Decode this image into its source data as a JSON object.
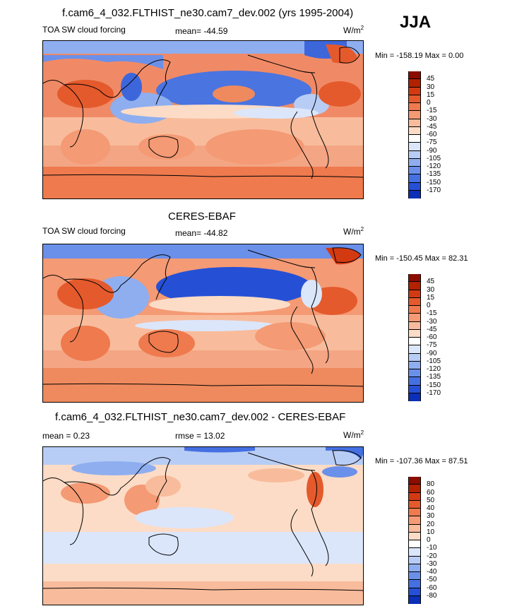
{
  "season": "JJA",
  "units_base": "W/m",
  "units_exp": "2",
  "panels": [
    {
      "title": "f.cam6_4_032.FLTHIST_ne30.cam7_dev.002 (yrs 1995-2004)",
      "left_label": "TOA SW cloud forcing",
      "center_label": "mean= -44.59",
      "minmax": "Min = -158.19 Max =   0.00",
      "colorbar_labels": [
        "45",
        "30",
        "15",
        "0",
        "-15",
        "-30",
        "-45",
        "-60",
        "-75",
        "-90",
        "-105",
        "-120",
        "-135",
        "-150",
        "-170"
      ]
    },
    {
      "title": "CERES-EBAF",
      "left_label": "TOA SW cloud forcing",
      "center_label": "mean= -44.82",
      "minmax": "Min = -150.45 Max =  82.31",
      "colorbar_labels": [
        "45",
        "30",
        "15",
        "0",
        "-15",
        "-30",
        "-45",
        "-60",
        "-75",
        "-90",
        "-105",
        "-120",
        "-135",
        "-150",
        "-170"
      ]
    },
    {
      "title": "f.cam6_4_032.FLTHIST_ne30.cam7_dev.002 - CERES-EBAF",
      "left_label": "mean =   0.23",
      "center_label": "rmse =  13.02",
      "minmax": "Min = -107.36 Max =  87.51",
      "colorbar_labels": [
        "80",
        "60",
        "50",
        "40",
        "30",
        "20",
        "10",
        "0",
        "-10",
        "-20",
        "-30",
        "-40",
        "-50",
        "-60",
        "-80"
      ]
    }
  ],
  "colors": {
    "palette": [
      "#8b0d00",
      "#b22100",
      "#d43a12",
      "#e45a2c",
      "#ee7a4e",
      "#f49a74",
      "#f8bc9c",
      "#fcdcc6",
      "#ffffff",
      "#dbe6fb",
      "#b8cdf5",
      "#8eaef0",
      "#6a90ea",
      "#4470e2",
      "#2550d6",
      "#0b2fb8",
      "#00007f"
    ],
    "map_base_warm": "#f08a66",
    "map_cool": "#3d66db"
  },
  "chart_data": [
    {
      "type": "heatmap",
      "title": "f.cam6_4_032.FLTHIST_ne30.cam7_dev.002 (yrs 1995-2004)",
      "variable": "TOA SW cloud forcing",
      "season": "JJA",
      "mean": -44.59,
      "min": -158.19,
      "max": 0.0,
      "units": "W/m2",
      "contour_levels": [
        -170,
        -150,
        -135,
        -120,
        -105,
        -90,
        -75,
        -60,
        -45,
        -30,
        -15,
        0,
        15,
        30,
        45
      ]
    },
    {
      "type": "heatmap",
      "title": "CERES-EBAF",
      "variable": "TOA SW cloud forcing",
      "season": "JJA",
      "mean": -44.82,
      "min": -150.45,
      "max": 82.31,
      "units": "W/m2",
      "contour_levels": [
        -170,
        -150,
        -135,
        -120,
        -105,
        -90,
        -75,
        -60,
        -45,
        -30,
        -15,
        0,
        15,
        30,
        45
      ]
    },
    {
      "type": "heatmap",
      "title": "f.cam6_4_032.FLTHIST_ne30.cam7_dev.002 - CERES-EBAF",
      "variable": "difference",
      "season": "JJA",
      "mean": 0.23,
      "rmse": 13.02,
      "min": -107.36,
      "max": 87.51,
      "units": "W/m2",
      "contour_levels": [
        -80,
        -60,
        -50,
        -40,
        -30,
        -20,
        -10,
        0,
        10,
        20,
        30,
        40,
        50,
        60,
        80
      ]
    }
  ]
}
